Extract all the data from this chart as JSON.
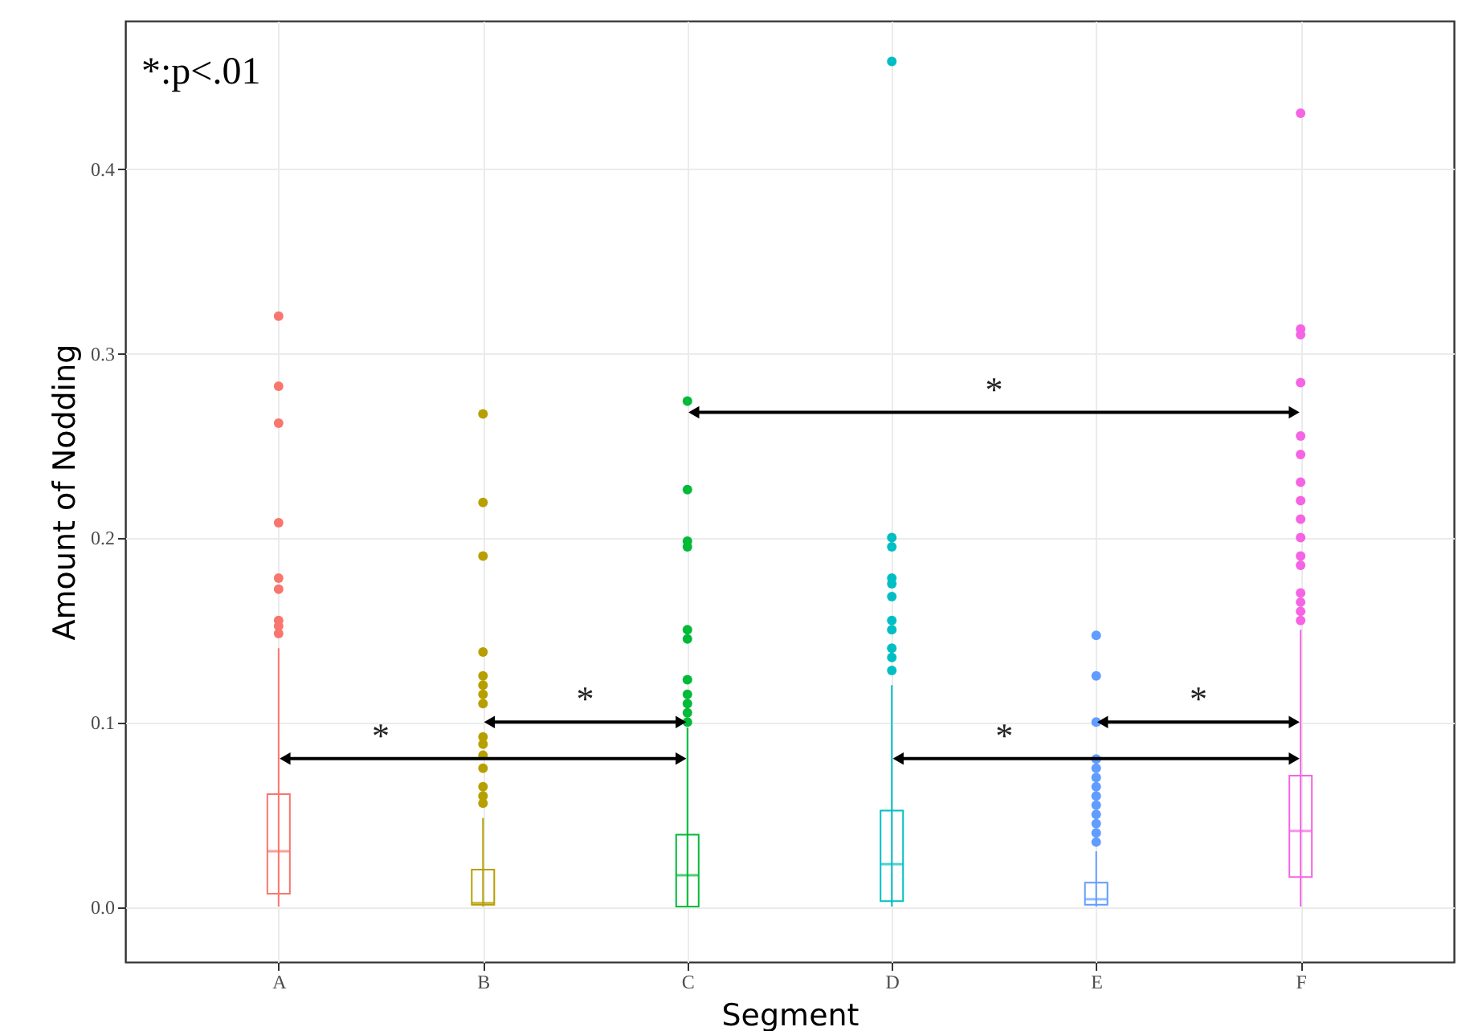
{
  "chart_data": {
    "type": "box",
    "xlabel": "Segment",
    "ylabel": "Amount of Nodding",
    "categories": [
      "A",
      "B",
      "C",
      "D",
      "E",
      "F"
    ],
    "colors": [
      "#f8766d",
      "#b79f00",
      "#00ba38",
      "#00bfc4",
      "#619cff",
      "#f564e3"
    ],
    "boxes": [
      {
        "low": 0,
        "q1": 0.007,
        "median": 0.03,
        "q3": 0.061,
        "high": 0.14,
        "outliers": [
          0.32,
          0.282,
          0.262,
          0.208,
          0.178,
          0.172,
          0.155,
          0.152,
          0.148
        ]
      },
      {
        "low": 0,
        "q1": 0.001,
        "median": 0.002,
        "q3": 0.02,
        "high": 0.048,
        "outliers": [
          0.267,
          0.219,
          0.19,
          0.138,
          0.125,
          0.12,
          0.115,
          0.11,
          0.092,
          0.088,
          0.082,
          0.075,
          0.065,
          0.06,
          0.056
        ]
      },
      {
        "low": 0,
        "q1": 0,
        "median": 0.017,
        "q3": 0.039,
        "high": 0.097,
        "outliers": [
          0.274,
          0.226,
          0.198,
          0.195,
          0.15,
          0.145,
          0.123,
          0.115,
          0.11,
          0.105,
          0.1
        ]
      },
      {
        "low": 0,
        "q1": 0.003,
        "median": 0.023,
        "q3": 0.052,
        "high": 0.12,
        "outliers": [
          0.458,
          0.2,
          0.195,
          0.178,
          0.175,
          0.168,
          0.155,
          0.15,
          0.14,
          0.135,
          0.128
        ]
      },
      {
        "low": 0,
        "q1": 0.001,
        "median": 0.004,
        "q3": 0.013,
        "high": 0.03,
        "outliers": [
          0.147,
          0.125,
          0.1,
          0.08,
          0.075,
          0.07,
          0.065,
          0.06,
          0.055,
          0.05,
          0.045,
          0.04,
          0.035
        ]
      },
      {
        "low": 0,
        "q1": 0.016,
        "median": 0.041,
        "q3": 0.071,
        "high": 0.15,
        "outliers": [
          0.43,
          0.313,
          0.31,
          0.284,
          0.255,
          0.245,
          0.23,
          0.22,
          0.21,
          0.2,
          0.19,
          0.185,
          0.17,
          0.165,
          0.16,
          0.155
        ]
      }
    ],
    "ylim": [
      -0.03,
      0.48
    ],
    "yticks": [
      {
        "value": 0,
        "label": "0.0"
      },
      0.1,
      0.2,
      0.3,
      0.4
    ],
    "grid": true,
    "annotations": [
      "*:p<.01",
      "*",
      "*",
      "*",
      "*",
      "*"
    ]
  }
}
